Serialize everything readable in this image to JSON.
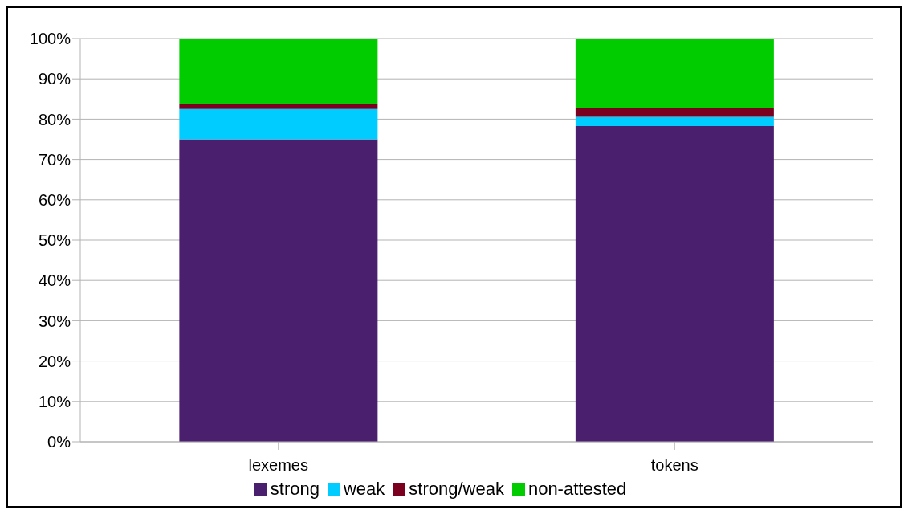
{
  "chart_data": {
    "type": "bar",
    "stacked": true,
    "categories": [
      "lexemes",
      "tokens"
    ],
    "series": [
      {
        "name": "strong",
        "color": "#4a1f6e",
        "values": [
          75,
          78.3
        ]
      },
      {
        "name": "weak",
        "color": "#00ccff",
        "values": [
          7.5,
          2.3
        ]
      },
      {
        "name": "strong/weak",
        "color": "#7b0020",
        "values": [
          1.3,
          2.1
        ]
      },
      {
        "name": "non-attested",
        "color": "#00cc00",
        "values": [
          16.2,
          17.3
        ]
      }
    ],
    "ylim": [
      0,
      100
    ],
    "yticks": [
      {
        "value": 0,
        "label": "0%"
      },
      {
        "value": 10,
        "label": "10%"
      },
      {
        "value": 20,
        "label": "20%"
      },
      {
        "value": 30,
        "label": "30%"
      },
      {
        "value": 40,
        "label": "40%"
      },
      {
        "value": 50,
        "label": "50%"
      },
      {
        "value": 60,
        "label": "60%"
      },
      {
        "value": 70,
        "label": "70%"
      },
      {
        "value": 80,
        "label": "80%"
      },
      {
        "value": 90,
        "label": "90%"
      },
      {
        "value": 100,
        "label": "100%"
      }
    ],
    "grid": "y",
    "legend": "bottom"
  }
}
